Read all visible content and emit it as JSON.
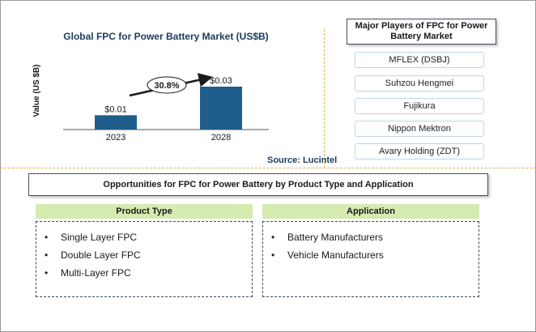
{
  "chart": {
    "title": "Global FPC for Power Battery Market (US$B)",
    "source": "Source: Lucintel",
    "cagr_label": "30.8%"
  },
  "chart_data": {
    "type": "bar",
    "title": "Global FPC for Power Battery Market (US$B)",
    "categories": [
      "2023",
      "2028"
    ],
    "values": [
      0.01,
      0.03
    ],
    "value_labels": [
      "$0.01",
      "$0.03"
    ],
    "xlabel": "",
    "ylabel": "Value (US $B)",
    "ylim": [
      0,
      0.03
    ],
    "grid": false,
    "bar_color": "#1f5e8c",
    "annotation": "30.8%"
  },
  "players": {
    "title": "Major Players of FPC for Power Battery Market",
    "items": [
      "MFLEX (DSBJ)",
      "Suhzou Hengmei",
      "Fujikura",
      "Nippon Mektron",
      "Avary Holding (ZDT)"
    ]
  },
  "opportunities": {
    "title": "Opportunities for FPC for Power Battery by Product Type and Application",
    "product_type": {
      "title": "Product Type",
      "items": [
        "Single Layer FPC",
        "Double Layer FPC",
        "Multi-Layer FPC"
      ]
    },
    "application": {
      "title": "Application",
      "items": [
        "Battery Manufacturers",
        "Vehicle Manufacturers"
      ]
    }
  },
  "colors": {
    "bar": "#1f5e8c",
    "title_text": "#1c3a5e",
    "header_fill": "#d6ebb0",
    "divider": "#e0b24a"
  }
}
